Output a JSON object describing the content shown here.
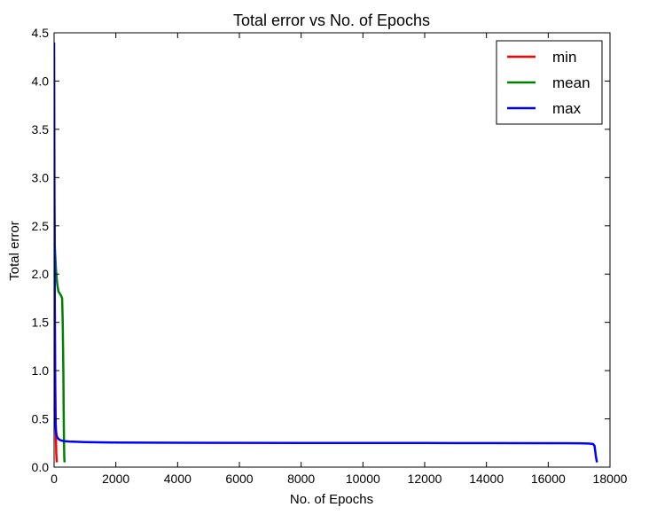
{
  "chart_data": {
    "type": "line",
    "title": "Total error vs No. of Epochs",
    "xlabel": "No. of Epochs",
    "ylabel": "Total error",
    "xlim": [
      0,
      18000
    ],
    "ylim": [
      0,
      4.5
    ],
    "xticks": [
      0,
      2000,
      4000,
      6000,
      8000,
      10000,
      12000,
      14000,
      16000,
      18000
    ],
    "xtick_labels": [
      "0",
      "2000",
      "4000",
      "6000",
      "8000",
      "10000",
      "12000",
      "14000",
      "16000",
      "18000"
    ],
    "yticks": [
      0,
      0.5,
      1,
      1.5,
      2,
      2.5,
      3,
      3.5,
      4,
      4.5
    ],
    "ytick_labels": [
      "0.0",
      "0.5",
      "1.0",
      "1.5",
      "2.0",
      "2.5",
      "3.0",
      "3.5",
      "4.0",
      "4.5"
    ],
    "grid": false,
    "legend_position": "top-right",
    "series": [
      {
        "name": "min",
        "color": "#ff0000",
        "x": [
          0,
          10,
          20,
          30,
          40,
          50,
          60,
          70,
          80,
          90
        ],
        "y": [
          3.0,
          2.5,
          1.8,
          1.2,
          0.8,
          0.5,
          0.3,
          0.15,
          0.08,
          0.05
        ]
      },
      {
        "name": "mean",
        "color": "#008000",
        "x": [
          0,
          20,
          60,
          100,
          140,
          180,
          200,
          220,
          260,
          280,
          300,
          310,
          320,
          330,
          340
        ],
        "y": [
          3.0,
          2.3,
          2.05,
          1.9,
          1.82,
          1.8,
          1.79,
          1.78,
          1.75,
          1.5,
          1.0,
          0.6,
          0.3,
          0.1,
          0.05
        ]
      },
      {
        "name": "max",
        "color": "#0000ff",
        "x": [
          0,
          10,
          20,
          30,
          40,
          50,
          60,
          80,
          100,
          150,
          200,
          300,
          500,
          1000,
          2000,
          4000,
          6000,
          8000,
          10000,
          12000,
          14000,
          16000,
          17000,
          17300,
          17450,
          17500,
          17520,
          17540,
          17560,
          17580
        ],
        "y": [
          4.4,
          3.0,
          1.8,
          1.0,
          0.6,
          0.45,
          0.38,
          0.33,
          0.31,
          0.29,
          0.28,
          0.27,
          0.265,
          0.26,
          0.255,
          0.252,
          0.251,
          0.25,
          0.25,
          0.25,
          0.249,
          0.248,
          0.247,
          0.245,
          0.24,
          0.22,
          0.17,
          0.12,
          0.08,
          0.05
        ]
      }
    ]
  }
}
